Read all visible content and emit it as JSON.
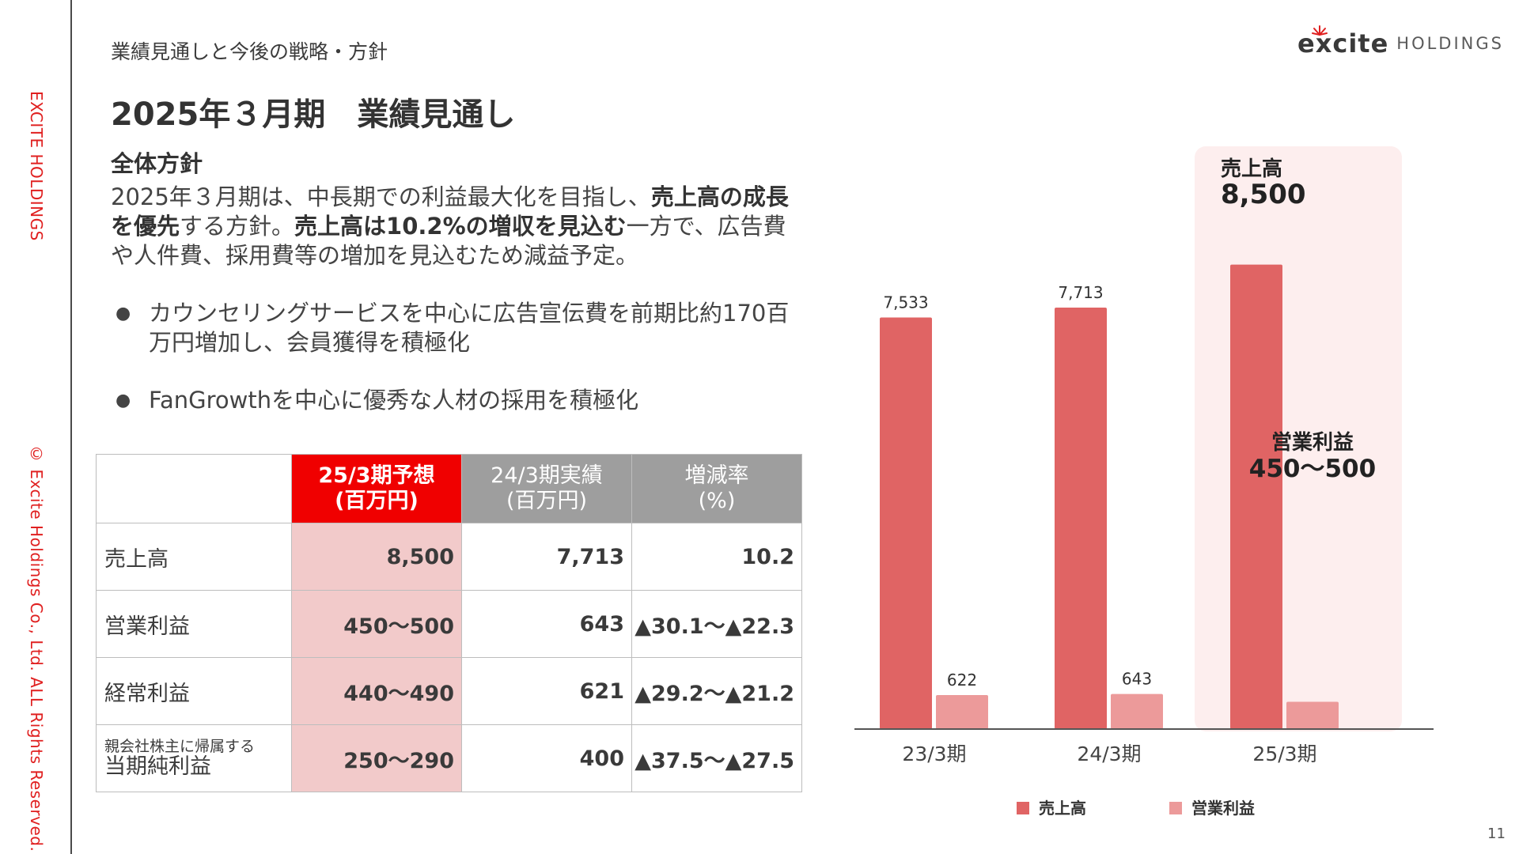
{
  "sidebar": {
    "brand": "EXCITE HOLDINGS",
    "copyright": "© Excite Holdings Co., Ltd. ALL Rights Reserved."
  },
  "header": {
    "section_label": "業績見通しと今後の戦略・方針",
    "logo_word": "excite",
    "logo_sub": "HOLDINGS"
  },
  "title": "2025年３月期　業績見通し",
  "policy": {
    "heading": "全体方針",
    "body": [
      {
        "text": "2025年３月期は、中長期での利益最大化を目指し、",
        "bold": false
      },
      {
        "text": "売上高の成長を優先",
        "bold": true
      },
      {
        "text": "する方針。",
        "bold": false
      },
      {
        "text": "売上高は10.2%の増収を見込む",
        "bold": true
      },
      {
        "text": "一方で、広告費や人件費、採用費等の増加を見込むため減益予定。",
        "bold": false
      }
    ],
    "bullets": [
      "カウンセリングサービスを中心に広告宣伝費を前期比約170百万円増加し、会員獲得を積極化",
      "FanGrowthを中心に優秀な人材の採用を積極化"
    ]
  },
  "table": {
    "headers": {
      "forecast_l1": "25/3期予想",
      "forecast_l2": "(百万円)",
      "actual_l1": "24/3期実績",
      "actual_l2": "(百万円)",
      "rate_l1": "増減率",
      "rate_l2": "(%)"
    },
    "rows": [
      {
        "label": "売上高",
        "forecast": "8,500",
        "actual": "7,713",
        "rate": "10.2"
      },
      {
        "label": "営業利益",
        "forecast": "450〜500",
        "actual": "643",
        "rate": "▲30.1〜▲22.3"
      },
      {
        "label": "経常利益",
        "forecast": "440〜490",
        "actual": "621",
        "rate": "▲29.2〜▲21.2"
      },
      {
        "label_small": "親会社株主に帰属する",
        "label": "当期純利益",
        "forecast": "250〜290",
        "actual": "400",
        "rate": "▲37.5〜▲27.5"
      }
    ]
  },
  "chart_data": {
    "type": "bar",
    "categories": [
      "23/3期",
      "24/3期",
      "25/3期"
    ],
    "series": [
      {
        "name": "売上高",
        "values": [
          7533,
          7713,
          8500
        ],
        "labels": [
          "7,533",
          "7,713",
          ""
        ],
        "color": "#e06464"
      },
      {
        "name": "営業利益",
        "values": [
          622,
          643,
          500
        ],
        "labels": [
          "622",
          "643",
          ""
        ],
        "color": "#ec9a9a"
      }
    ],
    "highlight": {
      "category": "25/3期",
      "background": "#fdeeee",
      "sales_title": "売上高",
      "sales_value": "8,500",
      "op_title": "営業利益",
      "op_value": "450〜500"
    },
    "ylim": [
      0,
      9300
    ],
    "legend_position": "bottom",
    "grid": false
  },
  "page_number": "11"
}
